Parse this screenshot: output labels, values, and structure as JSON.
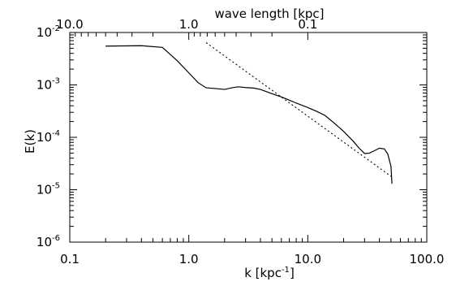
{
  "chart_data": {
    "type": "line",
    "xlabel_prefix": "k  [kpc",
    "xlabel_sup": "-1",
    "xlabel_suffix": "]",
    "ylabel": "E(k)",
    "top_xlabel": "wave length  [kpc]",
    "x_scale": "log",
    "y_scale": "log",
    "xlim": [
      0.1,
      100
    ],
    "ylim": [
      1e-06,
      0.01
    ],
    "grid": false,
    "x_ticks": [
      {
        "value": 0.1,
        "label": "0.1"
      },
      {
        "value": 1,
        "label": "1.0"
      },
      {
        "value": 10,
        "label": "10.0"
      },
      {
        "value": 100,
        "label": "100.0"
      }
    ],
    "top_x_ticks": [
      {
        "wavelength": 10,
        "label": "10.0"
      },
      {
        "wavelength": 1,
        "label": "1.0"
      },
      {
        "wavelength": 0.1,
        "label": "0.1"
      }
    ],
    "y_ticks": [
      {
        "value": 1e-06,
        "base": "10",
        "exp": "-6"
      },
      {
        "value": 1e-05,
        "base": "10",
        "exp": "-5"
      },
      {
        "value": 0.0001,
        "base": "10",
        "exp": "-4"
      },
      {
        "value": 0.001,
        "base": "10",
        "exp": "-3"
      },
      {
        "value": 0.01,
        "base": "10",
        "exp": "-2"
      }
    ],
    "series": [
      {
        "style": "solid",
        "x": [
          0.2,
          0.4,
          0.6,
          0.8,
          1.0,
          1.2,
          1.4,
          1.7,
          2.0,
          2.3,
          2.6,
          3.0,
          3.5,
          4.0,
          5.0,
          6.0,
          7.0,
          8.0,
          10.0,
          12.0,
          14.0,
          17.0,
          20.0,
          24.0,
          27.0,
          30.0,
          33.0,
          36.0,
          40.0,
          44.0,
          47.0,
          50.0,
          51.0
        ],
        "y": [
          0.0055,
          0.0056,
          0.0052,
          0.0029,
          0.0017,
          0.0011,
          0.00088,
          0.00085,
          0.00082,
          0.00088,
          0.00092,
          0.00089,
          0.00087,
          0.00082,
          0.00068,
          0.00059,
          0.00051,
          0.00045,
          0.00037,
          0.00031,
          0.00026,
          0.00018,
          0.00013,
          8.5e-05,
          6.2e-05,
          4.9e-05,
          5e-05,
          5.5e-05,
          6.2e-05,
          6e-05,
          4.8e-05,
          2.8e-05,
          1.3e-05
        ]
      },
      {
        "style": "dotted",
        "x": [
          1.4,
          50.0
        ],
        "y": [
          0.0064,
          1.8e-05
        ]
      }
    ]
  }
}
